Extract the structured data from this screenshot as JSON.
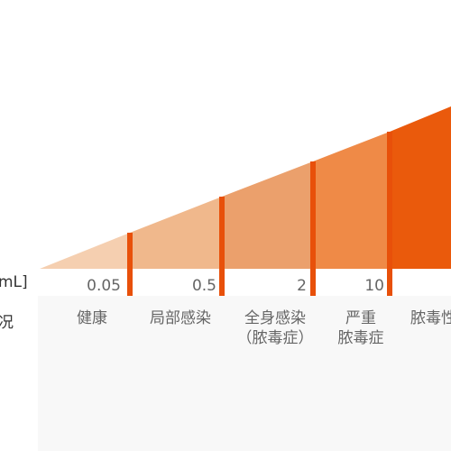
{
  "axis": {
    "unit_label": "mL]",
    "category_label": "况"
  },
  "thresholds": [
    "0.05",
    "0.5",
    "2",
    "10"
  ],
  "stages": [
    {
      "line1": "健康",
      "line2": ""
    },
    {
      "line1": "局部感染",
      "line2": ""
    },
    {
      "line1": "全身感染",
      "line2": "（脓毒症）"
    },
    {
      "line1": "严重",
      "line2": "脓毒症"
    },
    {
      "line1": "脓毒性",
      "line2": ""
    }
  ],
  "colors": {
    "band_1": "#f5cfb0",
    "band_2": "#f0b88c",
    "band_3": "#eba06c",
    "band_4": "#ef8a47",
    "band_5": "#ea5a0c",
    "divider": "#e8500a",
    "below_area": "#f8f8f8"
  }
}
